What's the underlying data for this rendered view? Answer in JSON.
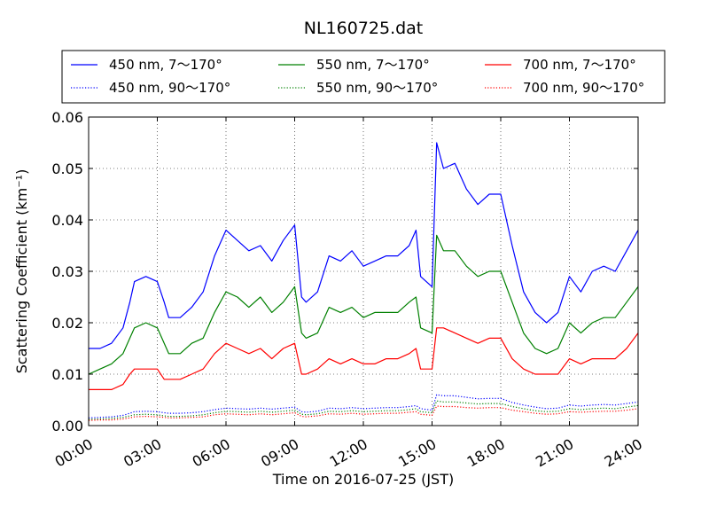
{
  "chart_data": {
    "type": "line",
    "title": "NL160725.dat",
    "xlabel": "Time on 2016-07-25 (JST)",
    "ylabel": "Scattering Coefficient (km⁻¹)",
    "xlim": [
      0,
      24
    ],
    "ylim": [
      0,
      0.06
    ],
    "x_ticks": [
      0,
      3,
      6,
      9,
      12,
      15,
      18,
      21,
      24
    ],
    "x_tick_labels": [
      "00:00",
      "03:00",
      "06:00",
      "09:00",
      "12:00",
      "15:00",
      "18:00",
      "21:00",
      "24:00"
    ],
    "y_ticks": [
      0,
      0.01,
      0.02,
      0.03,
      0.04,
      0.05,
      0.06
    ],
    "y_tick_labels": [
      "0.00",
      "0.01",
      "0.02",
      "0.03",
      "0.04",
      "0.05",
      "0.06"
    ],
    "grid": true,
    "legend_position": "top (above plot, 3 columns)",
    "x": [
      0,
      0.5,
      1,
      1.5,
      1.8,
      2,
      2.5,
      3,
      3.3,
      3.5,
      4,
      4.5,
      5,
      5.5,
      6,
      6.5,
      7,
      7.5,
      8,
      8.5,
      9,
      9.3,
      9.5,
      10,
      10.5,
      11,
      11.5,
      12,
      12.5,
      13,
      13.5,
      14,
      14.3,
      14.5,
      15,
      15.2,
      15.5,
      16,
      16.5,
      17,
      17.5,
      18,
      18.5,
      19,
      19.5,
      20,
      20.5,
      21,
      21.5,
      22,
      22.5,
      23,
      23.5,
      24
    ],
    "series": [
      {
        "name": "450 nm, 7～170°",
        "color": "#0000ff",
        "style": "solid",
        "values": [
          0.015,
          0.015,
          0.016,
          0.019,
          0.024,
          0.028,
          0.029,
          0.028,
          0.024,
          0.021,
          0.021,
          0.023,
          0.026,
          0.033,
          0.038,
          0.036,
          0.034,
          0.035,
          0.032,
          0.036,
          0.039,
          0.025,
          0.024,
          0.026,
          0.033,
          0.032,
          0.034,
          0.031,
          0.032,
          0.033,
          0.033,
          0.035,
          0.038,
          0.029,
          0.027,
          0.055,
          0.05,
          0.051,
          0.046,
          0.043,
          0.045,
          0.045,
          0.035,
          0.026,
          0.022,
          0.02,
          0.022,
          0.029,
          0.026,
          0.03,
          0.031,
          0.03,
          0.034,
          0.038
        ]
      },
      {
        "name": "550 nm, 7～170°",
        "color": "#008000",
        "style": "solid",
        "values": [
          0.01,
          0.011,
          0.012,
          0.014,
          0.017,
          0.019,
          0.02,
          0.019,
          0.016,
          0.014,
          0.014,
          0.016,
          0.017,
          0.022,
          0.026,
          0.025,
          0.023,
          0.025,
          0.022,
          0.024,
          0.027,
          0.018,
          0.017,
          0.018,
          0.023,
          0.022,
          0.023,
          0.021,
          0.022,
          0.022,
          0.022,
          0.024,
          0.025,
          0.019,
          0.018,
          0.037,
          0.034,
          0.034,
          0.031,
          0.029,
          0.03,
          0.03,
          0.024,
          0.018,
          0.015,
          0.014,
          0.015,
          0.02,
          0.018,
          0.02,
          0.021,
          0.021,
          0.024,
          0.027
        ]
      },
      {
        "name": "700 nm, 7～170°",
        "color": "#ff0000",
        "style": "solid",
        "values": [
          0.007,
          0.007,
          0.007,
          0.008,
          0.01,
          0.011,
          0.011,
          0.011,
          0.009,
          0.009,
          0.009,
          0.01,
          0.011,
          0.014,
          0.016,
          0.015,
          0.014,
          0.015,
          0.013,
          0.015,
          0.016,
          0.01,
          0.01,
          0.011,
          0.013,
          0.012,
          0.013,
          0.012,
          0.012,
          0.013,
          0.013,
          0.014,
          0.015,
          0.011,
          0.011,
          0.019,
          0.019,
          0.018,
          0.017,
          0.016,
          0.017,
          0.017,
          0.013,
          0.011,
          0.01,
          0.01,
          0.01,
          0.013,
          0.012,
          0.013,
          0.013,
          0.013,
          0.015,
          0.018
        ]
      },
      {
        "name": "450 nm, 90～170°",
        "color": "#0000ff",
        "style": "dotted",
        "values": [
          0.0015,
          0.0016,
          0.0017,
          0.002,
          0.0024,
          0.0027,
          0.0028,
          0.0027,
          0.0025,
          0.0024,
          0.0024,
          0.0025,
          0.0027,
          0.0031,
          0.0034,
          0.0033,
          0.0032,
          0.0034,
          0.0032,
          0.0034,
          0.0036,
          0.0027,
          0.0026,
          0.0028,
          0.0034,
          0.0033,
          0.0035,
          0.0033,
          0.0034,
          0.0035,
          0.0035,
          0.0037,
          0.0039,
          0.0033,
          0.003,
          0.006,
          0.0058,
          0.0058,
          0.0055,
          0.0052,
          0.0053,
          0.0053,
          0.0045,
          0.004,
          0.0036,
          0.0033,
          0.0034,
          0.004,
          0.0038,
          0.004,
          0.0041,
          0.004,
          0.0043,
          0.0046
        ]
      },
      {
        "name": "550 nm, 90～170°",
        "color": "#008000",
        "style": "dotted",
        "values": [
          0.0012,
          0.0013,
          0.0014,
          0.0016,
          0.0019,
          0.0021,
          0.0022,
          0.0021,
          0.0019,
          0.0018,
          0.0018,
          0.0019,
          0.0021,
          0.0025,
          0.0028,
          0.0027,
          0.0026,
          0.0028,
          0.0026,
          0.0028,
          0.003,
          0.0022,
          0.0021,
          0.0023,
          0.0028,
          0.0027,
          0.0029,
          0.0027,
          0.0028,
          0.0029,
          0.0029,
          0.0031,
          0.0033,
          0.0027,
          0.0025,
          0.0048,
          0.0046,
          0.0046,
          0.0044,
          0.0042,
          0.0043,
          0.0043,
          0.0037,
          0.0033,
          0.0029,
          0.0027,
          0.0028,
          0.0033,
          0.0031,
          0.0033,
          0.0034,
          0.0033,
          0.0036,
          0.0039
        ]
      },
      {
        "name": "700 nm, 90～170°",
        "color": "#ff0000",
        "style": "dotted",
        "values": [
          0.001,
          0.0011,
          0.0011,
          0.0013,
          0.0015,
          0.0017,
          0.0018,
          0.0017,
          0.0016,
          0.0015,
          0.0015,
          0.0016,
          0.0017,
          0.0021,
          0.0023,
          0.0022,
          0.0021,
          0.0023,
          0.0021,
          0.0023,
          0.0025,
          0.0018,
          0.0017,
          0.0019,
          0.0023,
          0.0022,
          0.0024,
          0.0022,
          0.0023,
          0.0024,
          0.0024,
          0.0026,
          0.0027,
          0.0022,
          0.002,
          0.0038,
          0.0037,
          0.0037,
          0.0035,
          0.0034,
          0.0035,
          0.0035,
          0.003,
          0.0027,
          0.0024,
          0.0022,
          0.0023,
          0.0027,
          0.0026,
          0.0027,
          0.0028,
          0.0028,
          0.003,
          0.0033
        ]
      }
    ]
  }
}
